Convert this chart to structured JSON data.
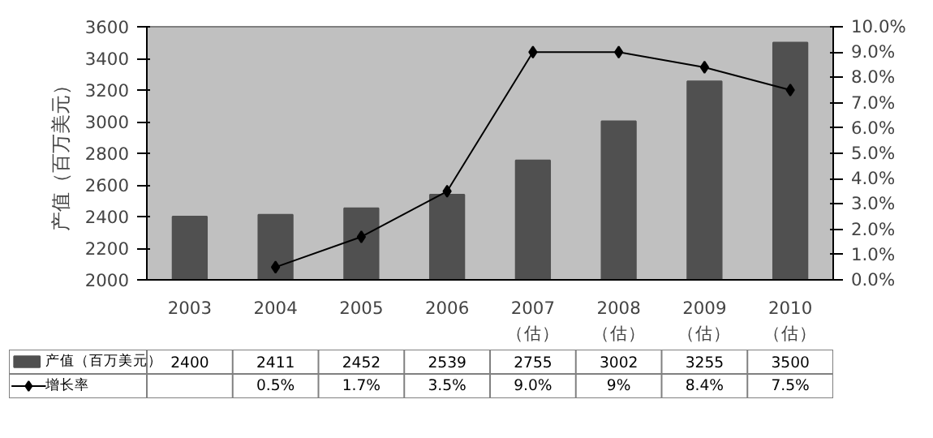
{
  "chart_data": {
    "type": "bar",
    "categories": [
      "2003",
      "2004",
      "2005",
      "2006",
      "2007\n（估）",
      "2008\n（估）",
      "2009\n（估）",
      "2010\n（估）"
    ],
    "ylabel": "产值（百万美元）",
    "ylim": [
      2000,
      3600
    ],
    "yticks": [
      2000,
      2200,
      2400,
      2600,
      2800,
      3000,
      3200,
      3400,
      3600
    ],
    "y2lim": [
      0,
      10
    ],
    "y2ticks": [
      {
        "value": 0,
        "label": "0.0%"
      },
      {
        "value": 1,
        "label": "1.0%"
      },
      {
        "value": 2,
        "label": "2.0%"
      },
      {
        "value": 3,
        "label": "3.0%"
      },
      {
        "value": 4,
        "label": "4.0%"
      },
      {
        "value": 5,
        "label": "5.0%"
      },
      {
        "value": 6,
        "label": "6.0%"
      },
      {
        "value": 7,
        "label": "7.0%"
      },
      {
        "value": 8,
        "label": "8.0%"
      },
      {
        "value": 9,
        "label": "9.0%"
      },
      {
        "value": 10,
        "label": "10.0%"
      }
    ],
    "grid": false,
    "legend": "bottom",
    "marker": "diamond",
    "series": [
      {
        "name": "产值（百万美元）",
        "color": "#505050",
        "values": [
          2400,
          2411,
          2452,
          2539,
          2755,
          3002,
          3255,
          3500
        ],
        "value_labels": [
          "2400",
          "2411",
          "2452",
          "2539",
          "2755",
          "3002",
          "3255",
          "3500"
        ]
      },
      {
        "name": "增长率",
        "type": "line",
        "axis": "y2",
        "color": "#000000",
        "values": [
          null,
          0.5,
          1.7,
          3.5,
          9.0,
          9,
          8.4,
          7.5
        ],
        "value_labels": [
          null,
          "0.5%",
          "1.7%",
          "3.5%",
          "9.0%",
          "9%",
          "8.4%",
          "7.5%"
        ]
      }
    ]
  }
}
